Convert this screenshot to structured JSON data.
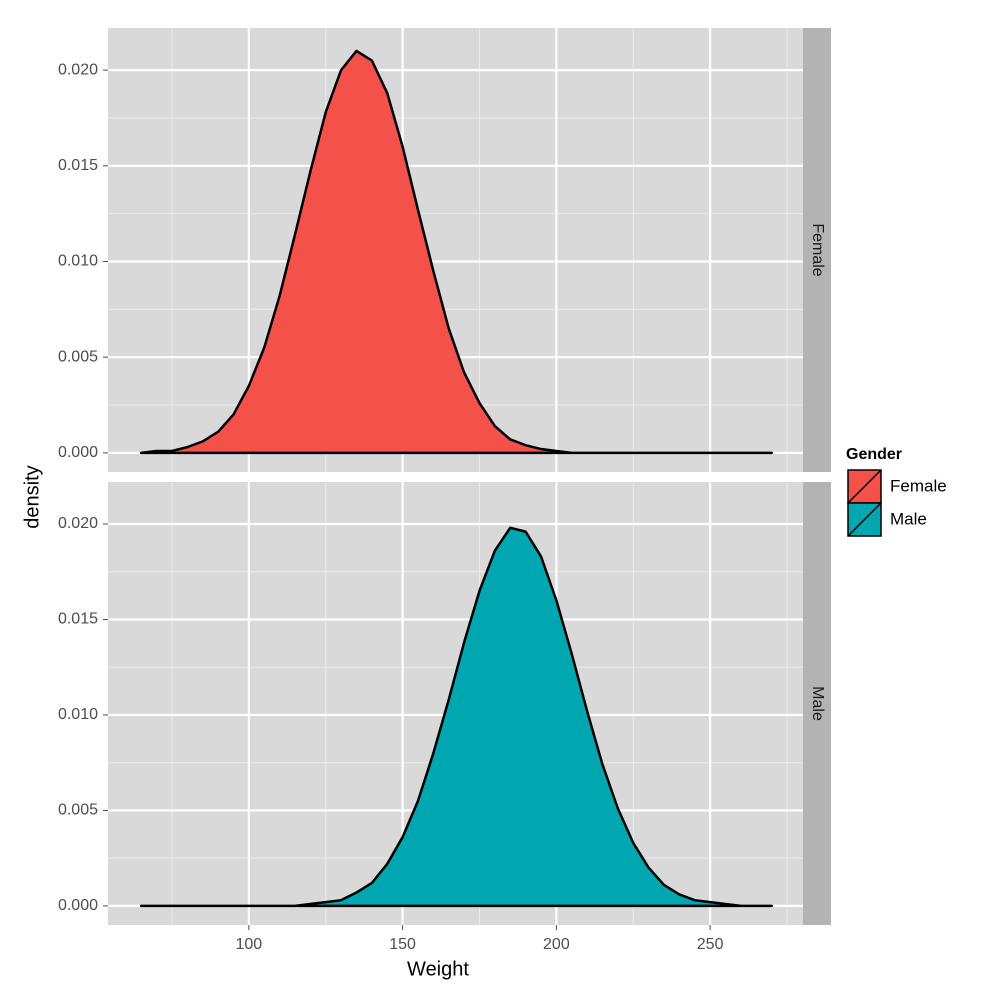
{
  "chart_data": {
    "type": "density",
    "x_label": "Weight",
    "y_label": "density",
    "legend_title": "Gender",
    "x": [
      65,
      70,
      75,
      80,
      85,
      90,
      95,
      100,
      105,
      110,
      115,
      120,
      125,
      130,
      135,
      140,
      145,
      150,
      155,
      160,
      165,
      170,
      175,
      180,
      185,
      190,
      195,
      200,
      205,
      210,
      215,
      220,
      225,
      230,
      235,
      240,
      245,
      250,
      255,
      260,
      265,
      270
    ],
    "series": [
      {
        "name": "Female",
        "color": "#f4514b",
        "values": [
          0,
          0.0001,
          0.0001,
          0.0003,
          0.0006,
          0.0011,
          0.002,
          0.0035,
          0.0055,
          0.0082,
          0.0114,
          0.0147,
          0.0178,
          0.02,
          0.021,
          0.0205,
          0.0188,
          0.016,
          0.0127,
          0.0095,
          0.0065,
          0.0042,
          0.0026,
          0.0014,
          0.0007,
          0.0004,
          0.0002,
          0.0001,
          0,
          0,
          0,
          0,
          0,
          0,
          0,
          0,
          0,
          0,
          0,
          0,
          0,
          0
        ]
      },
      {
        "name": "Male",
        "color": "#00a6b0",
        "values": [
          0,
          0,
          0,
          0,
          0,
          0,
          0,
          0,
          0,
          0,
          0,
          0.0001,
          0.0002,
          0.0003,
          0.0007,
          0.0012,
          0.0022,
          0.0036,
          0.0055,
          0.008,
          0.0108,
          0.0138,
          0.0165,
          0.0186,
          0.0198,
          0.0196,
          0.0183,
          0.016,
          0.0132,
          0.0102,
          0.0074,
          0.0051,
          0.0033,
          0.002,
          0.0011,
          0.0006,
          0.0003,
          0.0002,
          0.0001,
          0,
          0,
          0
        ]
      }
    ],
    "xlim": [
      54.2,
      280.2
    ],
    "xticks": [
      100,
      150,
      200,
      250
    ],
    "ylim": [
      -0.001,
      0.0222
    ],
    "yticks": [
      {
        "value": 0,
        "label": "0.000"
      },
      {
        "value": 0.005,
        "label": "0.005"
      },
      {
        "value": 0.01,
        "label": "0.010"
      },
      {
        "value": 0.015,
        "label": "0.015"
      },
      {
        "value": 0.02,
        "label": "0.020"
      }
    ],
    "grid": true,
    "facet": "rows",
    "legend": "right"
  }
}
